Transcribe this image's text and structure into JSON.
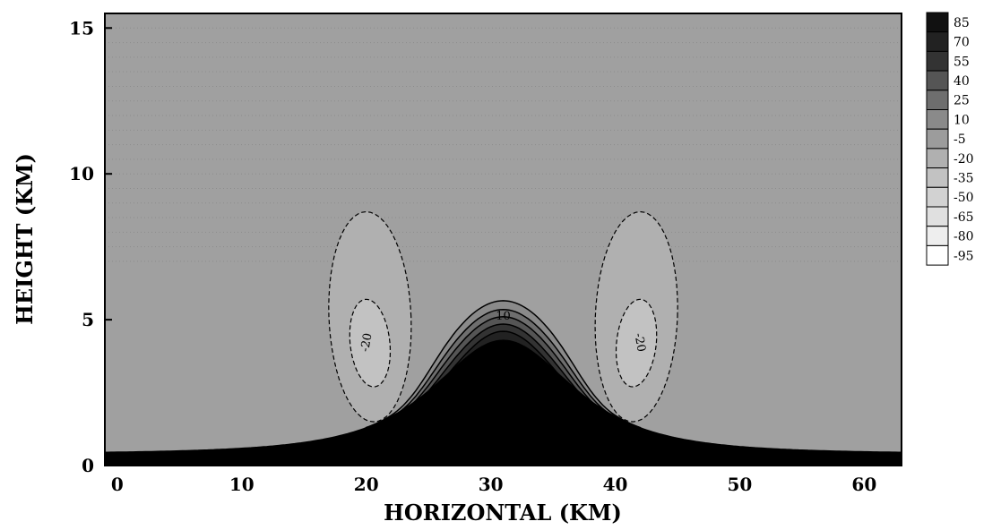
{
  "chart_data": {
    "type": "heatmap",
    "xlabel": "HORIZONTAL (KM)",
    "ylabel": "HEIGHT (KM)",
    "xlim": [
      -1,
      63
    ],
    "ylim": [
      0,
      15.5
    ],
    "x_ticks": [
      0,
      10,
      20,
      30,
      40,
      50,
      60
    ],
    "y_ticks": [
      0,
      5,
      10,
      15
    ],
    "background_level": 10,
    "colorbar": {
      "levels": [
        "85",
        "70",
        "55",
        "40",
        "25",
        "10",
        "-5",
        "-20",
        "-35",
        "-50",
        "-65",
        "-80",
        "-95"
      ],
      "colors": [
        "#111111",
        "#222222",
        "#333333",
        "#555555",
        "#6e6e6e",
        "#8a8a8a",
        "#9c9c9c",
        "#b0b0b0",
        "#c2c2c2",
        "#d2d2d2",
        "#e0e0e0",
        "#eeeeee",
        "#ffffff"
      ]
    },
    "terrain": {
      "description": "bell-shaped mountain",
      "center_x": 31,
      "peak_height": 3.9,
      "half_width": 9,
      "base_height": 0.4
    },
    "contours": [
      {
        "label": "-20",
        "center_x": 20.3,
        "center_y": 4.2,
        "level": "-20"
      },
      {
        "label": "-20",
        "center_x": 41.7,
        "center_y": 4.2,
        "level": "-20"
      },
      {
        "label": "10",
        "center_x": 31,
        "center_y": 5.0,
        "level": "10"
      }
    ]
  }
}
